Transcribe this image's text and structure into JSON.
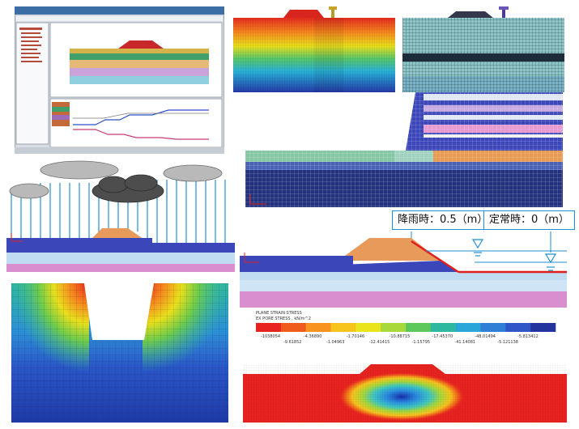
{
  "labels": {
    "rain_level": "降雨時：0.5（m）",
    "steady_level": "定常時：0（m）"
  },
  "legend": {
    "title_line1": "PLANE STRAIN STRESS",
    "title_line2": "EX PORE STRESS , kN/m^2",
    "ticks_top": [
      "-1038054",
      "-4.36890",
      "-1.70146",
      "-10.88715",
      "-17.45370",
      "-48.01494",
      "-5.813412"
    ],
    "ticks_bottom": [
      "-9.61852",
      "-1.04963",
      "-12.41415",
      "-1.15795",
      "-41.14081",
      "-5.121138"
    ],
    "colors": [
      "#e8231f",
      "#f05a1c",
      "#f7931e",
      "#f7c41e",
      "#e9e41c",
      "#a8d83a",
      "#5cc75a",
      "#2fb8a0",
      "#2aa7d8",
      "#2f7fd6",
      "#2e56c8",
      "#23349e"
    ]
  },
  "colors": {
    "embankment": "#e79a5a",
    "layer_blue": "#3b47b8",
    "layer_light": "#bfdcf2",
    "layer_pink": "#d98ed0",
    "water_line": "#1f8fd1",
    "slope_red": "#e02020"
  },
  "icons": {
    "water_level": "water-level-triangle-icon",
    "rain": "rain-cloud-icon",
    "axis": "axis-arrow-icon"
  }
}
